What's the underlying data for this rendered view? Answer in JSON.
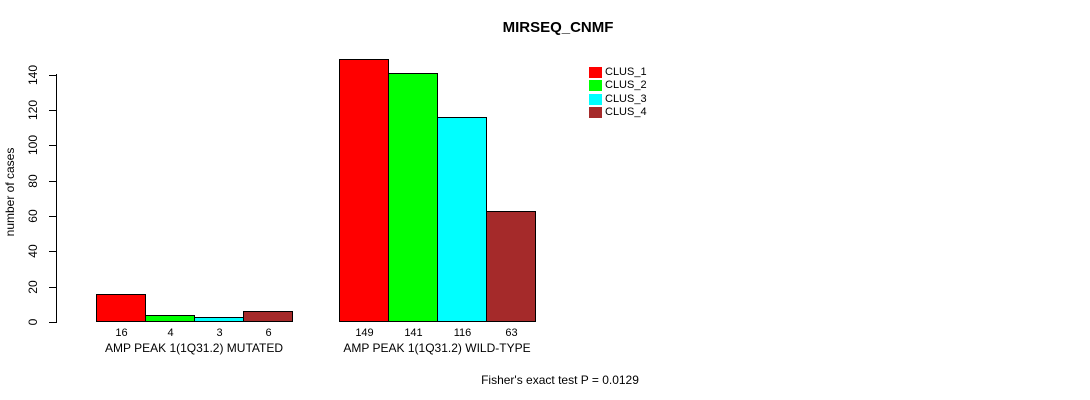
{
  "title": "MIRSEQ_CNMF",
  "footnote": "Fisher's exact test P = 0.0129",
  "chart_data": {
    "type": "bar",
    "title": "MIRSEQ_CNMF",
    "xlabel": "",
    "ylabel": "number of cases",
    "ylim": [
      0,
      140
    ],
    "yticks": [
      0,
      20,
      40,
      60,
      80,
      100,
      120,
      140
    ],
    "grid": false,
    "legend_position": "top-right",
    "categories": [
      "AMP PEAK 1(1Q31.2) MUTATED",
      "AMP PEAK 1(1Q31.2) WILD-TYPE"
    ],
    "series": [
      {
        "name": "CLUS_1",
        "color": "#FF0000",
        "values": [
          16,
          149
        ]
      },
      {
        "name": "CLUS_2",
        "color": "#00FF00",
        "values": [
          4,
          141
        ]
      },
      {
        "name": "CLUS_3",
        "color": "#00FFFF",
        "values": [
          3,
          116
        ]
      },
      {
        "name": "CLUS_4",
        "color": "#A52A2A",
        "values": [
          6,
          63
        ]
      }
    ],
    "bar_value_labels": [
      [
        "16",
        "4",
        "3",
        "6"
      ],
      [
        "149",
        "141",
        "116",
        "63"
      ]
    ],
    "annotation": "Fisher's exact test P = 0.0129"
  }
}
